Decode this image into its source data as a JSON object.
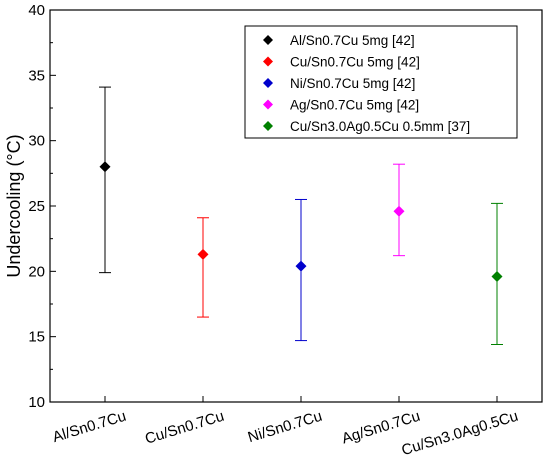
{
  "chart_data": {
    "type": "scatter",
    "title": "",
    "xlabel": "",
    "ylabel": "Undercooling (°C)",
    "ylim": [
      10,
      40
    ],
    "yticks": [
      10,
      15,
      20,
      25,
      30,
      35,
      40
    ],
    "categories": [
      "Al/Sn0.7Cu",
      "Cu/Sn0.7Cu",
      "Ni/Sn0.7Cu",
      "Ag/Sn0.7Cu",
      "Cu/Sn3.0Ag0.5Cu"
    ],
    "grid": false,
    "legend_position": "top-right",
    "series": [
      {
        "name": "Al/Sn0.7Cu 5mg [42]",
        "color": "#000000",
        "category": "Al/Sn0.7Cu",
        "value": 28.0,
        "err_low": 19.9,
        "err_high": 34.1
      },
      {
        "name": "Cu/Sn0.7Cu 5mg [42]",
        "color": "#ff0000",
        "category": "Cu/Sn0.7Cu",
        "value": 21.3,
        "err_low": 16.5,
        "err_high": 24.1
      },
      {
        "name": "Ni/Sn0.7Cu 5mg [42]",
        "color": "#0000cc",
        "category": "Ni/Sn0.7Cu",
        "value": 20.4,
        "err_low": 14.7,
        "err_high": 25.5
      },
      {
        "name": "Ag/Sn0.7Cu 5mg [42]",
        "color": "#ff00ff",
        "category": "Ag/Sn0.7Cu",
        "value": 24.6,
        "err_low": 21.2,
        "err_high": 28.2
      },
      {
        "name": "Cu/Sn3.0Ag0.5Cu 0.5mm [37]",
        "color": "#008000",
        "category": "Cu/Sn3.0Ag0.5Cu",
        "value": 19.6,
        "err_low": 14.4,
        "err_high": 25.2
      }
    ]
  }
}
